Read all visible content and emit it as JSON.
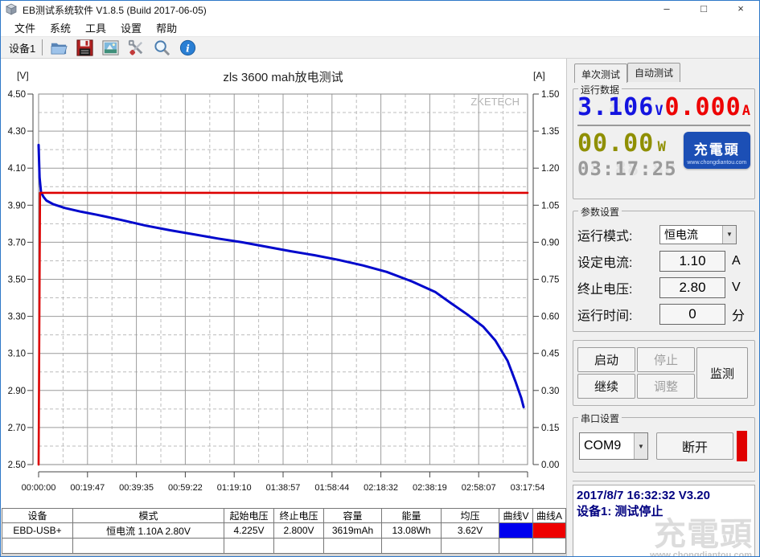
{
  "window": {
    "title": "EB测试系统软件 V1.8.5 (Build 2017-06-05)",
    "minimize": "–",
    "maximize": "□",
    "close": "×"
  },
  "menu": {
    "items": [
      {
        "label": "文件"
      },
      {
        "label": "系统"
      },
      {
        "label": "工具"
      },
      {
        "label": "设置"
      },
      {
        "label": "帮助"
      }
    ]
  },
  "toolbar": {
    "device_tab": "设备1",
    "icons": [
      {
        "name": "open-file-icon"
      },
      {
        "name": "save-icon"
      },
      {
        "name": "image-export-icon"
      },
      {
        "name": "tools-icon"
      },
      {
        "name": "zoom-icon"
      },
      {
        "name": "info-icon"
      }
    ]
  },
  "chart_data": {
    "type": "line",
    "title": "zls 3600  mah放电测试",
    "watermark": "ZKETECH",
    "left_axis": {
      "label": "[V]",
      "min": 2.5,
      "max": 4.5,
      "major": 0.2,
      "minor": 0.1,
      "ticks": [
        "4.50",
        "4.30",
        "4.10",
        "3.90",
        "3.70",
        "3.50",
        "3.30",
        "3.10",
        "2.90",
        "2.70",
        "2.50"
      ]
    },
    "right_axis": {
      "label": "[A]",
      "min": 0.0,
      "max": 1.5,
      "major": 0.15,
      "ticks": [
        "1.50",
        "1.35",
        "1.20",
        "1.05",
        "0.90",
        "0.75",
        "0.60",
        "0.45",
        "0.30",
        "0.15",
        "0.00"
      ]
    },
    "x_axis": {
      "total_time": "03:17:54",
      "ticks": [
        "00:00:00",
        "00:19:47",
        "00:39:35",
        "00:59:22",
        "01:19:10",
        "01:38:57",
        "01:58:44",
        "02:18:32",
        "02:38:19",
        "02:58:07",
        "03:17:54"
      ]
    },
    "grid": true,
    "series": [
      {
        "name": "voltage-curve-V",
        "axis": "left",
        "color": "#0008cc",
        "points": [
          [
            0.0,
            4.225
          ],
          [
            0.002,
            4.05
          ],
          [
            0.005,
            3.97
          ],
          [
            0.01,
            3.945
          ],
          [
            0.016,
            3.925
          ],
          [
            0.03,
            3.905
          ],
          [
            0.054,
            3.885
          ],
          [
            0.087,
            3.865
          ],
          [
            0.12,
            3.848
          ],
          [
            0.169,
            3.82
          ],
          [
            0.219,
            3.79
          ],
          [
            0.268,
            3.765
          ],
          [
            0.317,
            3.743
          ],
          [
            0.367,
            3.72
          ],
          [
            0.416,
            3.7
          ],
          [
            0.465,
            3.676
          ],
          [
            0.515,
            3.652
          ],
          [
            0.564,
            3.63
          ],
          [
            0.613,
            3.605
          ],
          [
            0.663,
            3.575
          ],
          [
            0.712,
            3.54
          ],
          [
            0.762,
            3.49
          ],
          [
            0.811,
            3.432
          ],
          [
            0.844,
            3.37
          ],
          [
            0.877,
            3.31
          ],
          [
            0.909,
            3.245
          ],
          [
            0.934,
            3.17
          ],
          [
            0.959,
            3.06
          ],
          [
            0.975,
            2.95
          ],
          [
            0.987,
            2.86
          ],
          [
            0.992,
            2.81
          ]
        ]
      },
      {
        "name": "current-curve-A",
        "axis": "right",
        "color": "#dd0000",
        "points": [
          [
            0.0,
            0.0
          ],
          [
            0.003,
            1.1
          ],
          [
            1.0,
            1.1
          ]
        ]
      }
    ]
  },
  "right_panel": {
    "tabs": [
      {
        "label": "单次测试"
      },
      {
        "label": "自动测试"
      }
    ],
    "run_data": {
      "legend": "运行数据",
      "voltage": {
        "value": "3.106",
        "ghost": "8.888",
        "unit": "V",
        "color": "#1414e0"
      },
      "current": {
        "value": "0.000",
        "ghost": "8.888",
        "unit": "A",
        "color": "#ee0000"
      },
      "power": {
        "value": "00.00",
        "ghost": "88.88",
        "unit": "W",
        "color": "#8f8f00"
      },
      "time": {
        "value": "03:17:25",
        "ghost": "88:88:88",
        "color": "#9a9a9a"
      },
      "logo_badge": {
        "text": "充電頭",
        "subtext": "www.chongdiantou.com"
      }
    },
    "params": {
      "legend": "参数设置",
      "rows": [
        {
          "label": "运行模式:",
          "value": "恒电流",
          "unit": ""
        },
        {
          "label": "设定电流:",
          "value": "1.10",
          "unit": "A"
        },
        {
          "label": "终止电压:",
          "value": "2.80",
          "unit": "V"
        },
        {
          "label": "运行时间:",
          "value": "0",
          "unit": "分"
        }
      ]
    },
    "controls": {
      "start": "启动",
      "stop": "停止",
      "resume": "继续",
      "adjust": "调整",
      "monitor": "监测"
    },
    "serial": {
      "legend": "串口设置",
      "port": "COM9",
      "disconnect": "断开"
    },
    "status": {
      "line1": "2017/8/7 16:32:32  V3.20",
      "line2": "设备1: 测试停止",
      "watermark_text": "充電頭",
      "watermark_url": "www.chongdiantou.com"
    }
  },
  "bottom_table": {
    "headers": [
      "设备",
      "模式",
      "起始电压",
      "终止电压",
      "容量",
      "能量",
      "均压",
      "曲线V",
      "曲线A"
    ],
    "row": {
      "cells": [
        "EBD-USB+",
        "恒电流 1.10A 2.80V",
        "4.225V",
        "2.800V",
        "3619mAh",
        "13.08Wh",
        "3.62V"
      ],
      "curve_v_color": "#0000ee",
      "curve_a_color": "#ee0000"
    }
  }
}
